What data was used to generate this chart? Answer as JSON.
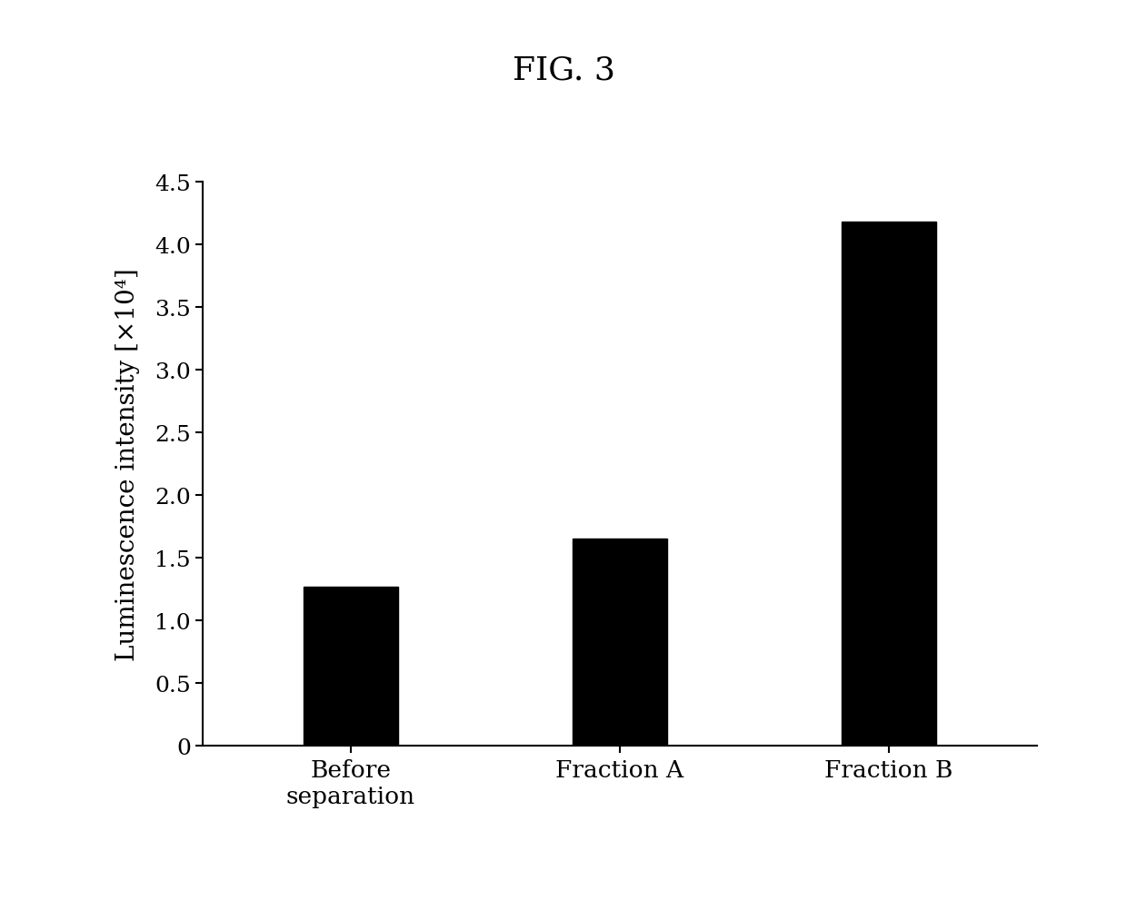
{
  "title": "FIG. 3",
  "categories": [
    "Before\nseparation",
    "Fraction A",
    "Fraction B"
  ],
  "values": [
    1.27,
    1.65,
    4.18
  ],
  "bar_color": "#000000",
  "ylabel": "Luminescence intensity [×10⁴]",
  "ylim": [
    0,
    4.5
  ],
  "yticks": [
    0,
    0.5,
    1.0,
    1.5,
    2.0,
    2.5,
    3.0,
    3.5,
    4.0,
    4.5
  ],
  "ytick_labels": [
    "0",
    "0.5",
    "1.0",
    "1.5",
    "2.0",
    "2.5",
    "3.0",
    "3.5",
    "4.0",
    "4.5"
  ],
  "background_color": "#ffffff",
  "bar_width": 0.35,
  "title_fontsize": 26,
  "ylabel_fontsize": 20,
  "tick_fontsize": 18,
  "xlabel_fontsize": 19
}
